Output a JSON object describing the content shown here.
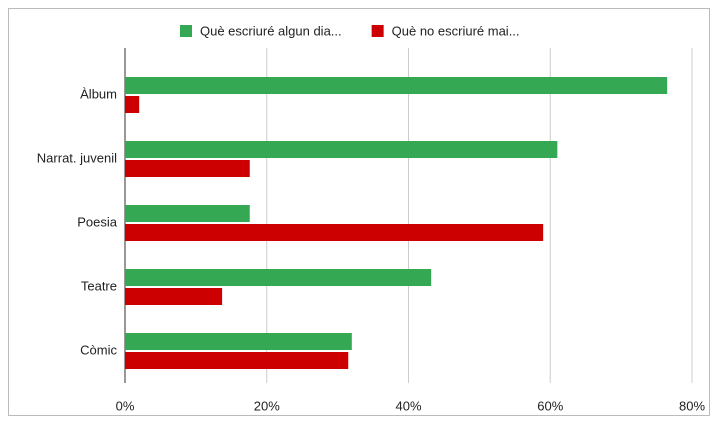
{
  "chart_data": {
    "type": "bar",
    "orientation": "horizontal",
    "categories": [
      "Àlbum",
      "Narrat. juvenil",
      "Poesia",
      "Teatre",
      "Còmic"
    ],
    "series": [
      {
        "name": "Què escriuré algun dia...",
        "color": "#34a853",
        "values": [
          76.5,
          61.0,
          17.6,
          43.2,
          32.0
        ]
      },
      {
        "name": "Què no escriuré mai...",
        "color": "#cc0000",
        "values": [
          2.0,
          17.6,
          59.0,
          13.7,
          31.5
        ]
      }
    ],
    "xlim": [
      0,
      80
    ],
    "xticks": [
      {
        "value": 0,
        "label": "0%"
      },
      {
        "value": 20,
        "label": "20%"
      },
      {
        "value": 40,
        "label": "40%"
      },
      {
        "value": 60,
        "label": "60%"
      },
      {
        "value": 80,
        "label": "80%"
      }
    ],
    "grid": true,
    "legend": "top"
  }
}
